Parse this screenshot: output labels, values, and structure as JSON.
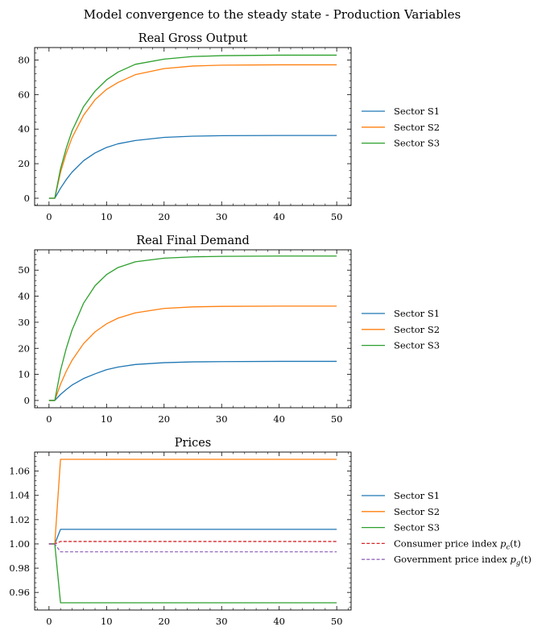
{
  "figure": {
    "suptitle": "Model convergence to the steady state - Production Variables"
  },
  "chart_data": [
    {
      "type": "line",
      "title": "Real Gross Output",
      "xlabel": "",
      "ylabel": "",
      "xlim": [
        -2.5,
        52.5
      ],
      "ylim": [
        -4.2,
        87.2
      ],
      "xticks": [
        0,
        10,
        20,
        30,
        40,
        50
      ],
      "yticks": [
        0,
        20,
        40,
        60,
        80
      ],
      "legend_position": "right-outside",
      "series": [
        {
          "name": "Sector S1",
          "color": "#1f77b4",
          "dash": "solid",
          "x": [
            0,
            1,
            2,
            3,
            4,
            6,
            8,
            10,
            12,
            15,
            20,
            25,
            30,
            40,
            50
          ],
          "y": [
            0,
            0,
            5.8,
            10.8,
            15.1,
            21.7,
            26.2,
            29.4,
            31.5,
            33.4,
            35.2,
            35.9,
            36.2,
            36.3,
            36.3
          ]
        },
        {
          "name": "Sector S2",
          "color": "#ff7f0e",
          "dash": "solid",
          "x": [
            0,
            1,
            2,
            3,
            4,
            6,
            8,
            10,
            12,
            15,
            20,
            25,
            30,
            40,
            50
          ],
          "y": [
            0,
            0,
            15,
            26,
            35,
            48,
            57,
            63,
            67,
            71.5,
            75,
            76.5,
            77,
            77.2,
            77.2
          ]
        },
        {
          "name": "Sector S3",
          "color": "#2ca02c",
          "dash": "solid",
          "x": [
            0,
            1,
            2,
            3,
            4,
            6,
            8,
            10,
            12,
            15,
            20,
            25,
            30,
            40,
            50
          ],
          "y": [
            0,
            0,
            17,
            29,
            39,
            53,
            62,
            68.5,
            73,
            77.5,
            80.5,
            82,
            82.5,
            82.8,
            82.8
          ]
        }
      ]
    },
    {
      "type": "line",
      "title": "Real Final Demand",
      "xlabel": "",
      "ylabel": "",
      "xlim": [
        -2.5,
        52.5
      ],
      "ylim": [
        -2.8,
        57.8
      ],
      "xticks": [
        0,
        10,
        20,
        30,
        40,
        50
      ],
      "yticks": [
        0,
        10,
        20,
        30,
        40,
        50
      ],
      "legend_position": "right-outside",
      "series": [
        {
          "name": "Sector S1",
          "color": "#1f77b4",
          "dash": "solid",
          "x": [
            0,
            1,
            2,
            3,
            4,
            6,
            8,
            10,
            12,
            15,
            20,
            25,
            30,
            40,
            50
          ],
          "y": [
            0,
            0,
            2.3,
            4.2,
            5.9,
            8.4,
            10.2,
            11.8,
            12.8,
            13.8,
            14.5,
            14.8,
            14.9,
            15.0,
            15.0
          ]
        },
        {
          "name": "Sector S2",
          "color": "#ff7f0e",
          "dash": "solid",
          "x": [
            0,
            1,
            2,
            3,
            4,
            6,
            8,
            10,
            12,
            15,
            20,
            25,
            30,
            40,
            50
          ],
          "y": [
            0,
            0,
            6.2,
            11.2,
            15.4,
            21.8,
            26.3,
            29.4,
            31.6,
            33.6,
            35.3,
            35.9,
            36.1,
            36.2,
            36.2
          ]
        },
        {
          "name": "Sector S3",
          "color": "#2ca02c",
          "dash": "solid",
          "x": [
            0,
            1,
            2,
            3,
            4,
            6,
            8,
            10,
            12,
            15,
            20,
            25,
            30,
            40,
            50
          ],
          "y": [
            0,
            0,
            11.5,
            20,
            27,
            37.3,
            44,
            48.3,
            51,
            53.2,
            54.6,
            55.1,
            55.3,
            55.4,
            55.4
          ]
        }
      ]
    },
    {
      "type": "line",
      "title": "Prices",
      "xlabel": "",
      "ylabel": "",
      "xlim": [
        -2.5,
        52.5
      ],
      "ylim": [
        0.9455,
        1.0757
      ],
      "xticks": [
        0,
        10,
        20,
        30,
        40,
        50
      ],
      "yticks": [
        0.96,
        0.98,
        1.0,
        1.02,
        1.04,
        1.06
      ],
      "ytick_labels": [
        "0.96",
        "0.98",
        "1.00",
        "1.02",
        "1.04",
        "1.06"
      ],
      "legend_position": "right-outside",
      "series": [
        {
          "name": "Sector S1",
          "color": "#1f77b4",
          "dash": "solid",
          "x": [
            0,
            1,
            2,
            50
          ],
          "y": [
            1.0,
            1.0,
            1.012,
            1.012
          ]
        },
        {
          "name": "Sector S2",
          "color": "#ff7f0e",
          "dash": "solid",
          "x": [
            0,
            1,
            2,
            50
          ],
          "y": [
            1.0,
            1.0,
            1.0697,
            1.0697
          ]
        },
        {
          "name": "Sector S3",
          "color": "#2ca02c",
          "dash": "solid",
          "x": [
            0,
            1,
            2,
            50
          ],
          "y": [
            1.0,
            1.0,
            0.9515,
            0.9515
          ]
        },
        {
          "name": "Consumer price index p_c(t)",
          "label_main": "Consumer price index ",
          "label_sym": "p",
          "label_sub": "c",
          "label_tail": "(t)",
          "color": "#d62728",
          "dash": "dashed",
          "x": [
            0,
            1,
            2,
            50
          ],
          "y": [
            1.0,
            1.0,
            1.002,
            1.002
          ]
        },
        {
          "name": "Government price index p_g(t)",
          "label_main": "Government price index ",
          "label_sym": "p",
          "label_sub": "g",
          "label_tail": "(t)",
          "color": "#9467bd",
          "dash": "dashed",
          "x": [
            0,
            1,
            2,
            50
          ],
          "y": [
            1.0,
            1.0,
            0.9935,
            0.9935
          ]
        }
      ]
    }
  ]
}
